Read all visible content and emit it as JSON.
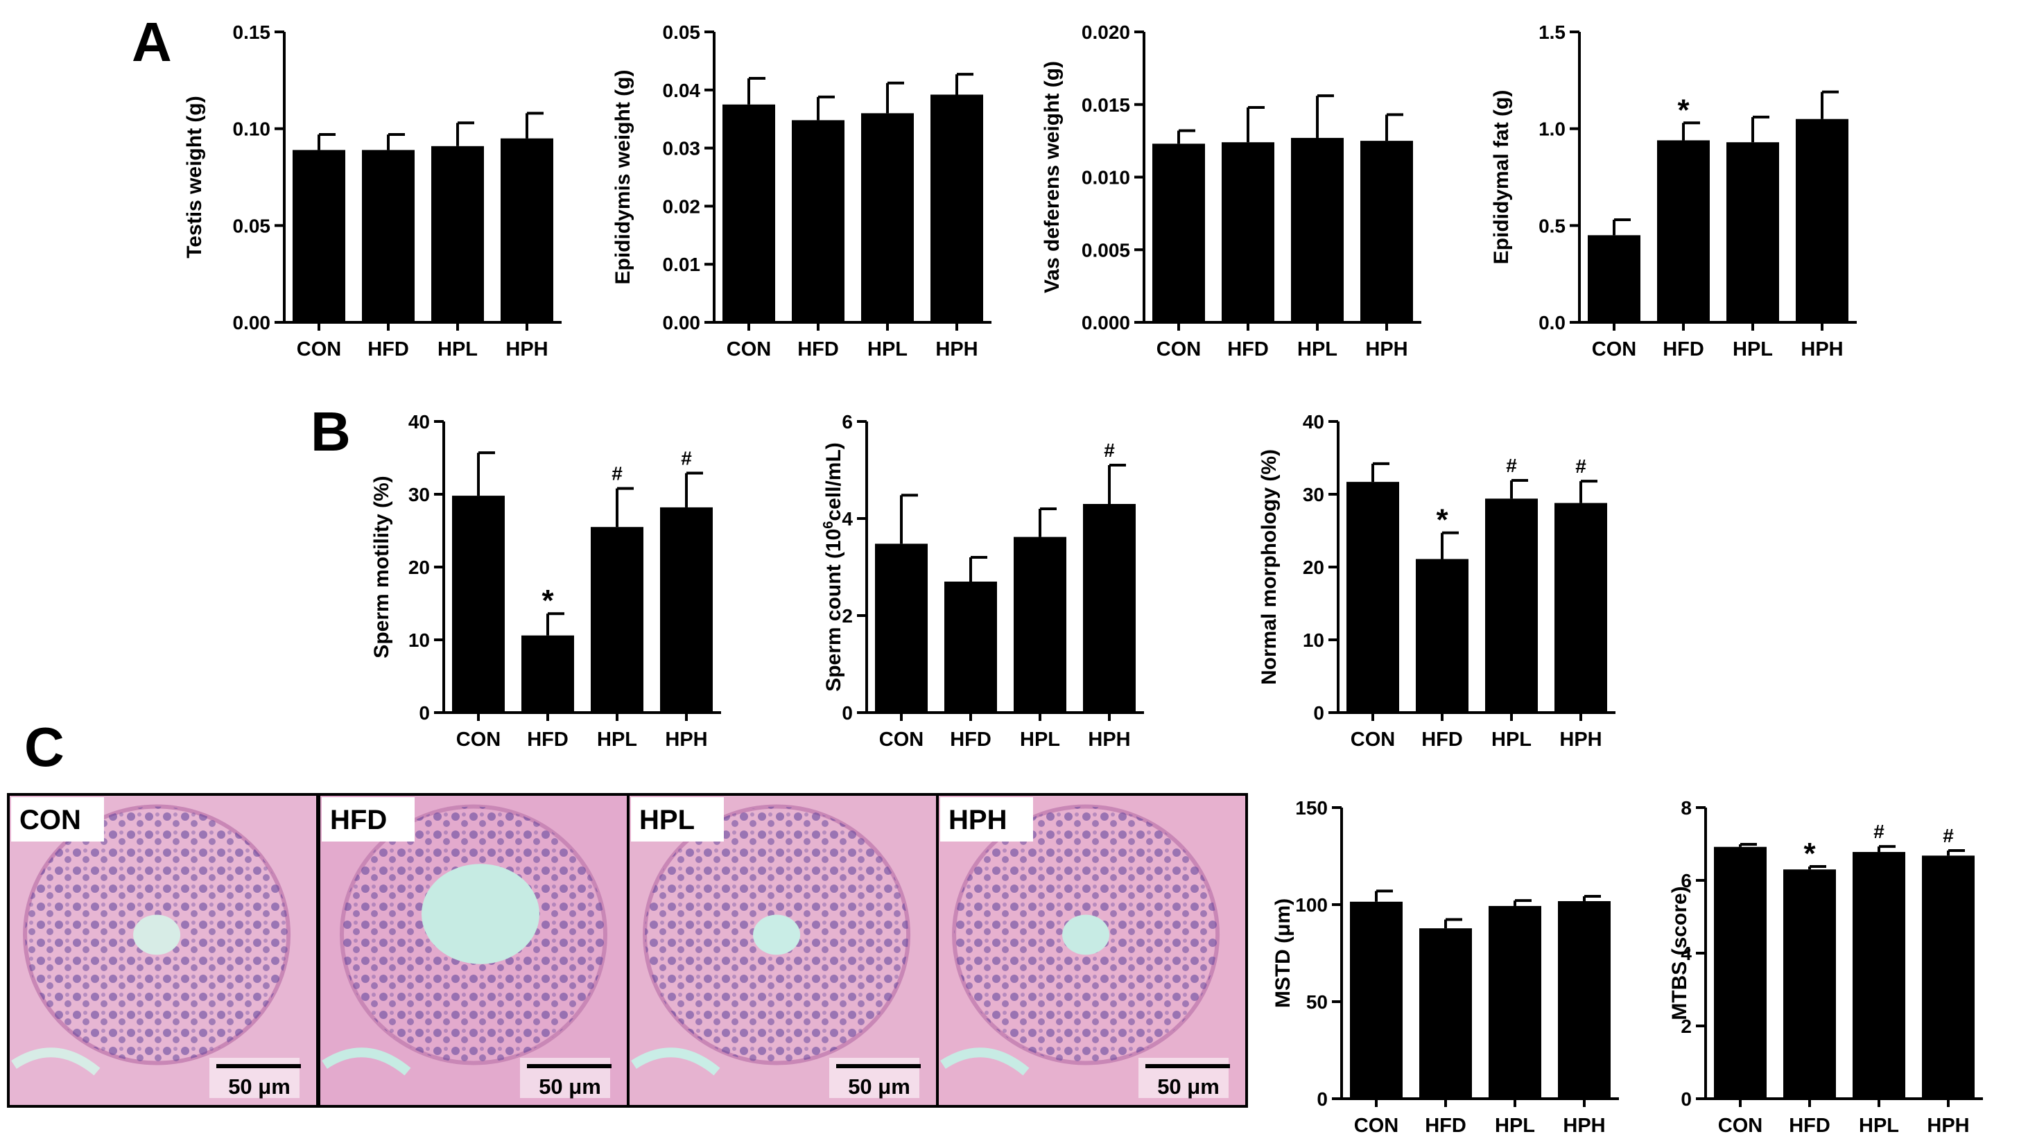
{
  "panels": [
    {
      "letter": "A"
    },
    {
      "letter": "B"
    },
    {
      "letter": "C"
    }
  ],
  "histology": {
    "scale_label": "50 μm",
    "tiles": [
      {
        "label": "CON",
        "stain_bg": "#e7b6d3",
        "lumen": "#d7ece6",
        "nuclei": "#5b3f9a"
      },
      {
        "label": "HFD",
        "stain_bg": "#e3aacd",
        "lumen": "#c6ebe3",
        "nuclei": "#55389a"
      },
      {
        "label": "HPL",
        "stain_bg": "#e6b3d0",
        "lumen": "#c9ede6",
        "nuclei": "#583c98"
      },
      {
        "label": "HPH",
        "stain_bg": "#e7b1cf",
        "lumen": "#c7ebe4",
        "nuclei": "#5a3d9b"
      }
    ]
  },
  "chart_data": [
    {
      "type": "bar",
      "panel": "A",
      "ylabel": "Testis weight (g)",
      "categories": [
        "CON",
        "HFD",
        "HPL",
        "HPH"
      ],
      "values": [
        0.089,
        0.089,
        0.091,
        0.095
      ],
      "errors": [
        0.008,
        0.008,
        0.012,
        0.013
      ],
      "annotations": [
        "",
        "",
        "",
        ""
      ],
      "ylim": [
        0,
        0.15
      ],
      "yticks": [
        "0.00",
        "0.05",
        "0.10",
        "0.15"
      ],
      "bar_color": "#000000"
    },
    {
      "type": "bar",
      "panel": "A",
      "ylabel": "Epididymis weight (g)",
      "categories": [
        "CON",
        "HFD",
        "HPL",
        "HPH"
      ],
      "values": [
        0.0375,
        0.0348,
        0.036,
        0.0392
      ],
      "errors": [
        0.0045,
        0.004,
        0.0052,
        0.0035
      ],
      "annotations": [
        "",
        "",
        "",
        ""
      ],
      "ylim": [
        0,
        0.05
      ],
      "yticks": [
        "0.00",
        "0.01",
        "0.02",
        "0.03",
        "0.04",
        "0.05"
      ],
      "bar_color": "#000000"
    },
    {
      "type": "bar",
      "panel": "A",
      "ylabel": "Vas deferens weight (g)",
      "categories": [
        "CON",
        "HFD",
        "HPL",
        "HPH"
      ],
      "values": [
        0.0123,
        0.0124,
        0.0127,
        0.0125
      ],
      "errors": [
        0.0009,
        0.0024,
        0.0029,
        0.0018
      ],
      "annotations": [
        "",
        "",
        "",
        ""
      ],
      "ylim": [
        0,
        0.02
      ],
      "yticks": [
        "0.000",
        "0.005",
        "0.010",
        "0.015",
        "0.020"
      ],
      "bar_color": "#000000"
    },
    {
      "type": "bar",
      "panel": "A",
      "ylabel": "Epididymal fat (g)",
      "categories": [
        "CON",
        "HFD",
        "HPL",
        "HPH"
      ],
      "values": [
        0.45,
        0.94,
        0.93,
        1.05
      ],
      "errors": [
        0.08,
        0.09,
        0.13,
        0.14
      ],
      "annotations": [
        "",
        "*",
        "",
        ""
      ],
      "ylim": [
        0,
        1.5
      ],
      "yticks": [
        "0.0",
        "0.5",
        "1.0",
        "1.5"
      ],
      "bar_color": "#000000"
    },
    {
      "type": "bar",
      "panel": "B",
      "ylabel": "Sperm motility (%)",
      "categories": [
        "CON",
        "HFD",
        "HPL",
        "HPH"
      ],
      "values": [
        29.8,
        10.6,
        25.5,
        28.2
      ],
      "errors": [
        5.9,
        3.0,
        5.3,
        4.7
      ],
      "annotations": [
        "",
        "*",
        "#",
        "#"
      ],
      "ylim": [
        0,
        40
      ],
      "yticks": [
        "0",
        "10",
        "20",
        "30",
        "40"
      ],
      "bar_color": "#000000"
    },
    {
      "type": "bar",
      "panel": "B",
      "ylabel": "Sperm count (10",
      "ylabel_sup": "6",
      "ylabel_tail": "cell/mL)",
      "categories": [
        "CON",
        "HFD",
        "HPL",
        "HPH"
      ],
      "values": [
        3.48,
        2.7,
        3.62,
        4.3
      ],
      "errors": [
        1.0,
        0.5,
        0.58,
        0.8
      ],
      "annotations": [
        "",
        "",
        "",
        "#"
      ],
      "ylim": [
        0,
        6
      ],
      "yticks": [
        "0",
        "2",
        "4",
        "6"
      ],
      "bar_color": "#000000"
    },
    {
      "type": "bar",
      "panel": "B",
      "ylabel": "Normal morphology (%)",
      "categories": [
        "CON",
        "HFD",
        "HPL",
        "HPH"
      ],
      "values": [
        31.7,
        21.1,
        29.4,
        28.8
      ],
      "errors": [
        2.5,
        3.6,
        2.5,
        3.0
      ],
      "annotations": [
        "",
        "*",
        "#",
        "#"
      ],
      "ylim": [
        0,
        40
      ],
      "yticks": [
        "0",
        "10",
        "20",
        "30",
        "40"
      ],
      "bar_color": "#000000"
    },
    {
      "type": "bar",
      "panel": "C",
      "ylabel": "MSTD (μm)",
      "categories": [
        "CON",
        "HFD",
        "HPL",
        "HPH"
      ],
      "values": [
        101.5,
        87.8,
        99.3,
        101.8
      ],
      "errors": [
        5.5,
        4.5,
        2.8,
        2.5
      ],
      "annotations": [
        "",
        "",
        "",
        ""
      ],
      "ylim": [
        0,
        150
      ],
      "yticks": [
        "0",
        "50",
        "100",
        "150"
      ],
      "bar_color": "#000000"
    },
    {
      "type": "bar",
      "panel": "C",
      "ylabel": "MTBS (score)",
      "categories": [
        "CON",
        "HFD",
        "HPL",
        "HPH"
      ],
      "values": [
        6.92,
        6.3,
        6.78,
        6.68
      ],
      "errors": [
        0.07,
        0.08,
        0.15,
        0.14
      ],
      "annotations": [
        "",
        "*",
        "#",
        "#"
      ],
      "ylim": [
        0,
        8
      ],
      "yticks": [
        "0",
        "2",
        "4",
        "6",
        "8"
      ],
      "bar_color": "#000000"
    }
  ]
}
